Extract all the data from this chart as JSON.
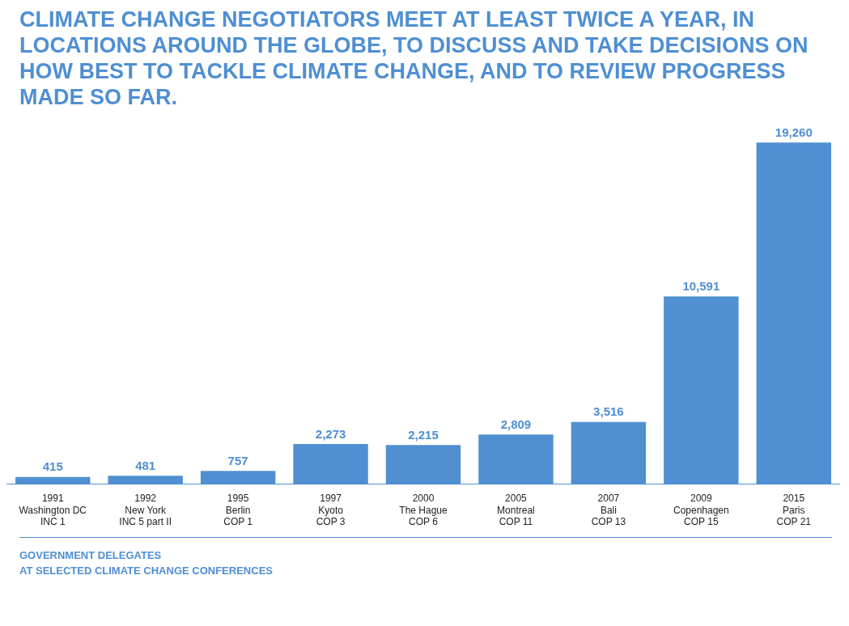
{
  "chart_data": {
    "type": "bar",
    "title": "CLIMATE CHANGE NEGOTIATORS MEET AT LEAST TWICE A YEAR, IN LOCATIONS AROUND THE GLOBE, TO DISCUSS AND TAKE DECISIONS ON HOW BEST TO TACKLE CLIMATE CHANGE, AND TO REVIEW PROGRESS MADE SO FAR.",
    "categories": [
      "1991\nWashington DC\nINC 1",
      "1992\nNew York\nINC 5 part II",
      "1995\nBerlin\nCOP 1",
      "1997\nKyoto\nCOP 3",
      "2000\nThe Hague\nCOP 6",
      "2005\nMontreal\nCOP 11",
      "2007\nBali\nCOP 13",
      "2009\nCopenhagen\nCOP 15",
      "2015\nParis\nCOP 21"
    ],
    "values": [
      415,
      481,
      757,
      2273,
      2215,
      2809,
      3516,
      10591,
      19260
    ],
    "value_labels": [
      "415",
      "481",
      "757",
      "2,273",
      "2,215",
      "2,809",
      "3,516",
      "10,591",
      "19,260"
    ],
    "color": "#4f8fd2",
    "grid": false,
    "legend": false,
    "annotations": [
      "GOVERNMENT DELEGATES\nAT SELECTED CLIMATE CHANGE CONFERENCES"
    ]
  }
}
